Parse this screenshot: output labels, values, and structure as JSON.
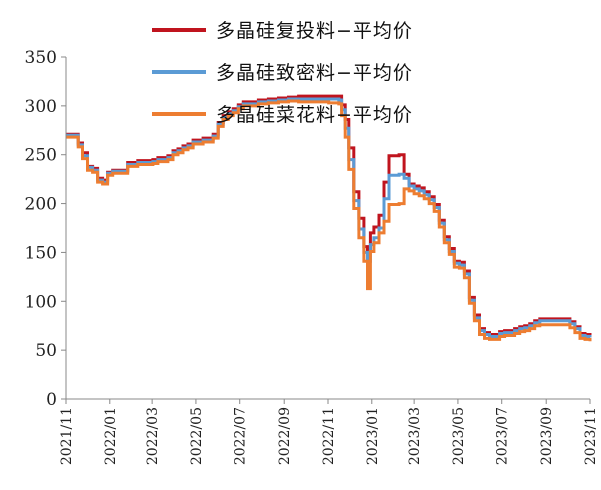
{
  "chart_data": {
    "type": "line",
    "title": "",
    "xlabel": "",
    "ylabel": "",
    "ylim": [
      0,
      350
    ],
    "yticks": [
      0,
      50,
      100,
      150,
      200,
      250,
      300,
      350
    ],
    "x_start": "2021/11",
    "x_end": "2023/11",
    "xticks": [
      "2021/11",
      "2022/01",
      "2022/03",
      "2022/05",
      "2022/07",
      "2022/09",
      "2022/11",
      "2023/01",
      "2023/03",
      "2023/05",
      "2023/07",
      "2023/09",
      "2023/11"
    ],
    "grid": false,
    "legend_position": "top",
    "series": [
      {
        "name": "多晶硅复投料−平均价",
        "color": "#c0141e",
        "points": [
          [
            "2021/11/01",
            271
          ],
          [
            "2021/11/15",
            271
          ],
          [
            "2021/11/18",
            262
          ],
          [
            "2021/11/24",
            252
          ],
          [
            "2021/12/01",
            238
          ],
          [
            "2021/12/08",
            236
          ],
          [
            "2021/12/15",
            226
          ],
          [
            "2021/12/22",
            224
          ],
          [
            "2021/12/29",
            232
          ],
          [
            "2022/01/05",
            234
          ],
          [
            "2022/01/19",
            234
          ],
          [
            "2022/01/26",
            242
          ],
          [
            "2022/02/09",
            244
          ],
          [
            "2022/02/23",
            244
          ],
          [
            "2022/03/02",
            245
          ],
          [
            "2022/03/09",
            247
          ],
          [
            "2022/03/23",
            249
          ],
          [
            "2022/03/30",
            254
          ],
          [
            "2022/04/06",
            256
          ],
          [
            "2022/04/13",
            259
          ],
          [
            "2022/04/20",
            261
          ],
          [
            "2022/04/27",
            265
          ],
          [
            "2022/05/11",
            267
          ],
          [
            "2022/05/25",
            271
          ],
          [
            "2022/06/01",
            283
          ],
          [
            "2022/06/08",
            290
          ],
          [
            "2022/06/15",
            294
          ],
          [
            "2022/06/22",
            297
          ],
          [
            "2022/06/29",
            301
          ],
          [
            "2022/07/06",
            304
          ],
          [
            "2022/07/20",
            304
          ],
          [
            "2022/07/27",
            306
          ],
          [
            "2022/08/10",
            307
          ],
          [
            "2022/08/24",
            308
          ],
          [
            "2022/09/07",
            309
          ],
          [
            "2022/09/21",
            310
          ],
          [
            "2022/10/05",
            310
          ],
          [
            "2022/10/19",
            310
          ],
          [
            "2022/11/02",
            310
          ],
          [
            "2022/11/16",
            310
          ],
          [
            "2022/11/20",
            301
          ],
          [
            "2022/11/25",
            286
          ],
          [
            "2022/11/30",
            257
          ],
          [
            "2022/12/07",
            212
          ],
          [
            "2022/12/14",
            185
          ],
          [
            "2022/12/21",
            156
          ],
          [
            "2022/12/26",
            151
          ],
          [
            "2022/12/30",
            170
          ],
          [
            "2023/01/04",
            176
          ],
          [
            "2023/01/11",
            188
          ],
          [
            "2023/01/18",
            222
          ],
          [
            "2023/01/25",
            249
          ],
          [
            "2023/02/08",
            250
          ],
          [
            "2023/02/15",
            230
          ],
          [
            "2023/02/22",
            220
          ],
          [
            "2023/03/01",
            218
          ],
          [
            "2023/03/08",
            216
          ],
          [
            "2023/03/15",
            212
          ],
          [
            "2023/03/22",
            207
          ],
          [
            "2023/03/29",
            199
          ],
          [
            "2023/04/05",
            183
          ],
          [
            "2023/04/12",
            166
          ],
          [
            "2023/04/19",
            154
          ],
          [
            "2023/04/26",
            141
          ],
          [
            "2023/05/03",
            140
          ],
          [
            "2023/05/10",
            131
          ],
          [
            "2023/05/17",
            104
          ],
          [
            "2023/05/24",
            86
          ],
          [
            "2023/05/31",
            72
          ],
          [
            "2023/06/07",
            68
          ],
          [
            "2023/06/14",
            66
          ],
          [
            "2023/06/21",
            66
          ],
          [
            "2023/06/28",
            69
          ],
          [
            "2023/07/05",
            70
          ],
          [
            "2023/07/19",
            72
          ],
          [
            "2023/07/26",
            74
          ],
          [
            "2023/08/02",
            75
          ],
          [
            "2023/08/09",
            77
          ],
          [
            "2023/08/16",
            80
          ],
          [
            "2023/08/23",
            82
          ],
          [
            "2023/09/06",
            82
          ],
          [
            "2023/09/20",
            82
          ],
          [
            "2023/10/04",
            79
          ],
          [
            "2023/10/11",
            74
          ],
          [
            "2023/10/18",
            67
          ],
          [
            "2023/10/25",
            66
          ],
          [
            "2023/11/01",
            65
          ]
        ]
      },
      {
        "name": "多晶硅致密料−平均价",
        "color": "#5b9bd5",
        "points": [
          [
            "2021/11/01",
            270
          ],
          [
            "2021/11/15",
            270
          ],
          [
            "2021/11/18",
            260
          ],
          [
            "2021/11/24",
            249
          ],
          [
            "2021/12/01",
            237
          ],
          [
            "2021/12/08",
            234
          ],
          [
            "2021/12/15",
            224
          ],
          [
            "2021/12/22",
            222
          ],
          [
            "2021/12/29",
            231
          ],
          [
            "2022/01/05",
            233
          ],
          [
            "2022/01/19",
            233
          ],
          [
            "2022/01/26",
            240
          ],
          [
            "2022/02/09",
            242
          ],
          [
            "2022/02/23",
            242
          ],
          [
            "2022/03/02",
            243
          ],
          [
            "2022/03/09",
            245
          ],
          [
            "2022/03/23",
            247
          ],
          [
            "2022/03/30",
            252
          ],
          [
            "2022/04/06",
            254
          ],
          [
            "2022/04/13",
            257
          ],
          [
            "2022/04/20",
            259
          ],
          [
            "2022/04/27",
            263
          ],
          [
            "2022/05/11",
            265
          ],
          [
            "2022/05/25",
            269
          ],
          [
            "2022/06/01",
            281
          ],
          [
            "2022/06/08",
            288
          ],
          [
            "2022/06/15",
            292
          ],
          [
            "2022/06/22",
            295
          ],
          [
            "2022/06/29",
            299
          ],
          [
            "2022/07/06",
            302
          ],
          [
            "2022/07/20",
            302
          ],
          [
            "2022/07/27",
            304
          ],
          [
            "2022/08/10",
            305
          ],
          [
            "2022/08/24",
            306
          ],
          [
            "2022/09/07",
            307
          ],
          [
            "2022/09/21",
            307
          ],
          [
            "2022/10/05",
            307
          ],
          [
            "2022/10/19",
            307
          ],
          [
            "2022/11/02",
            307
          ],
          [
            "2022/11/16",
            306
          ],
          [
            "2022/11/20",
            296
          ],
          [
            "2022/11/25",
            277
          ],
          [
            "2022/11/30",
            245
          ],
          [
            "2022/12/07",
            203
          ],
          [
            "2022/12/14",
            174
          ],
          [
            "2022/12/21",
            150
          ],
          [
            "2022/12/26",
            141
          ],
          [
            "2022/12/30",
            158
          ],
          [
            "2023/01/04",
            165
          ],
          [
            "2023/01/11",
            175
          ],
          [
            "2023/01/18",
            205
          ],
          [
            "2023/01/25",
            229
          ],
          [
            "2023/02/08",
            230
          ],
          [
            "2023/02/15",
            226
          ],
          [
            "2023/02/22",
            218
          ],
          [
            "2023/03/01",
            215
          ],
          [
            "2023/03/08",
            213
          ],
          [
            "2023/03/15",
            209
          ],
          [
            "2023/03/22",
            204
          ],
          [
            "2023/03/29",
            196
          ],
          [
            "2023/04/05",
            180
          ],
          [
            "2023/04/12",
            163
          ],
          [
            "2023/04/19",
            151
          ],
          [
            "2023/04/26",
            139
          ],
          [
            "2023/05/03",
            137
          ],
          [
            "2023/05/10",
            128
          ],
          [
            "2023/05/17",
            101
          ],
          [
            "2023/05/24",
            83
          ],
          [
            "2023/05/31",
            70
          ],
          [
            "2023/06/07",
            66
          ],
          [
            "2023/06/14",
            64
          ],
          [
            "2023/06/21",
            64
          ],
          [
            "2023/06/28",
            67
          ],
          [
            "2023/07/05",
            68
          ],
          [
            "2023/07/19",
            70
          ],
          [
            "2023/07/26",
            72
          ],
          [
            "2023/08/02",
            73
          ],
          [
            "2023/08/09",
            75
          ],
          [
            "2023/08/16",
            78
          ],
          [
            "2023/08/23",
            80
          ],
          [
            "2023/09/06",
            80
          ],
          [
            "2023/09/20",
            80
          ],
          [
            "2023/10/04",
            77
          ],
          [
            "2023/10/11",
            72
          ],
          [
            "2023/10/18",
            65
          ],
          [
            "2023/10/25",
            64
          ],
          [
            "2023/11/01",
            63
          ]
        ]
      },
      {
        "name": "多晶硅菜花料−平均价",
        "color": "#ed7d31",
        "points": [
          [
            "2021/11/01",
            268
          ],
          [
            "2021/11/15",
            268
          ],
          [
            "2021/11/18",
            258
          ],
          [
            "2021/11/24",
            246
          ],
          [
            "2021/12/01",
            234
          ],
          [
            "2021/12/08",
            232
          ],
          [
            "2021/12/15",
            222
          ],
          [
            "2021/12/22",
            220
          ],
          [
            "2021/12/29",
            229
          ],
          [
            "2022/01/05",
            231
          ],
          [
            "2022/01/19",
            231
          ],
          [
            "2022/01/26",
            238
          ],
          [
            "2022/02/09",
            240
          ],
          [
            "2022/02/23",
            240
          ],
          [
            "2022/03/02",
            241
          ],
          [
            "2022/03/09",
            243
          ],
          [
            "2022/03/23",
            245
          ],
          [
            "2022/03/30",
            250
          ],
          [
            "2022/04/06",
            252
          ],
          [
            "2022/04/13",
            255
          ],
          [
            "2022/04/20",
            257
          ],
          [
            "2022/04/27",
            261
          ],
          [
            "2022/05/11",
            263
          ],
          [
            "2022/05/25",
            267
          ],
          [
            "2022/06/01",
            279
          ],
          [
            "2022/06/08",
            286
          ],
          [
            "2022/06/15",
            290
          ],
          [
            "2022/06/22",
            293
          ],
          [
            "2022/06/29",
            297
          ],
          [
            "2022/07/06",
            300
          ],
          [
            "2022/07/20",
            300
          ],
          [
            "2022/07/27",
            302
          ],
          [
            "2022/08/10",
            303
          ],
          [
            "2022/08/24",
            304
          ],
          [
            "2022/09/07",
            305
          ],
          [
            "2022/09/21",
            304
          ],
          [
            "2022/10/05",
            304
          ],
          [
            "2022/10/19",
            304
          ],
          [
            "2022/11/02",
            303
          ],
          [
            "2022/11/16",
            302
          ],
          [
            "2022/11/20",
            290
          ],
          [
            "2022/11/25",
            268
          ],
          [
            "2022/11/30",
            235
          ],
          [
            "2022/12/07",
            195
          ],
          [
            "2022/12/14",
            165
          ],
          [
            "2022/12/21",
            141
          ],
          [
            "2022/12/26",
            113
          ],
          [
            "2022/12/30",
            151
          ],
          [
            "2023/01/04",
            160
          ],
          [
            "2023/01/11",
            170
          ],
          [
            "2023/01/18",
            182
          ],
          [
            "2023/01/25",
            199
          ],
          [
            "2023/02/08",
            200
          ],
          [
            "2023/02/15",
            215
          ],
          [
            "2023/02/22",
            213
          ],
          [
            "2023/03/01",
            210
          ],
          [
            "2023/03/08",
            208
          ],
          [
            "2023/03/15",
            205
          ],
          [
            "2023/03/22",
            200
          ],
          [
            "2023/03/29",
            192
          ],
          [
            "2023/04/05",
            176
          ],
          [
            "2023/04/12",
            160
          ],
          [
            "2023/04/19",
            148
          ],
          [
            "2023/04/26",
            135
          ],
          [
            "2023/05/03",
            134
          ],
          [
            "2023/05/10",
            124
          ],
          [
            "2023/05/17",
            98
          ],
          [
            "2023/05/24",
            80
          ],
          [
            "2023/05/31",
            66
          ],
          [
            "2023/06/07",
            62
          ],
          [
            "2023/06/14",
            61
          ],
          [
            "2023/06/21",
            61
          ],
          [
            "2023/06/28",
            64
          ],
          [
            "2023/07/05",
            65
          ],
          [
            "2023/07/19",
            67
          ],
          [
            "2023/07/26",
            69
          ],
          [
            "2023/08/02",
            70
          ],
          [
            "2023/08/09",
            72
          ],
          [
            "2023/08/16",
            75
          ],
          [
            "2023/08/23",
            76
          ],
          [
            "2023/09/06",
            76
          ],
          [
            "2023/09/20",
            76
          ],
          [
            "2023/10/04",
            73
          ],
          [
            "2023/10/11",
            68
          ],
          [
            "2023/10/18",
            62
          ],
          [
            "2023/10/25",
            61
          ],
          [
            "2023/11/01",
            59
          ]
        ]
      }
    ]
  }
}
